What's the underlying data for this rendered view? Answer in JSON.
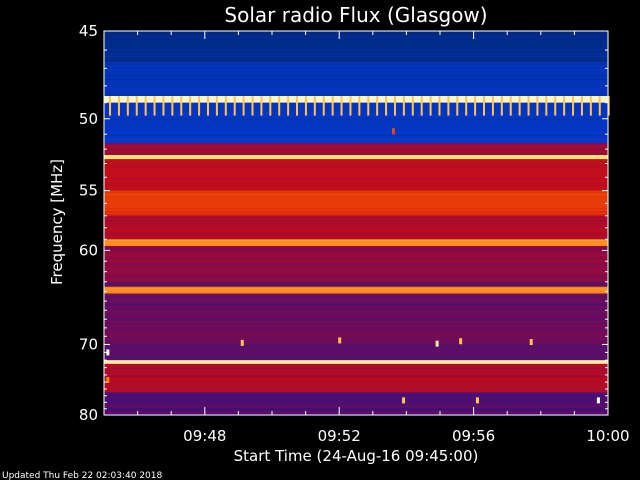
{
  "chart_data": {
    "type": "heatmap",
    "title": "Solar radio Flux (Glasgow)",
    "xlabel": "Start Time (24-Aug-16 09:45:00)",
    "ylabel": "Frequency [MHz]",
    "x_tick_labels": [
      "09:48",
      "09:52",
      "09:56",
      "10:00"
    ],
    "x_ticks_minutes_after_0945": [
      3,
      7,
      11,
      15
    ],
    "xlim_minutes_after_0945": [
      0,
      15
    ],
    "y_tick_labels": [
      "45",
      "50",
      "55",
      "60",
      "70",
      "80"
    ],
    "y_ticks_mhz": [
      45,
      50,
      55,
      60,
      70,
      80
    ],
    "ylim_mhz": [
      45,
      80
    ],
    "y_scale": "reciprocal",
    "colormap": [
      "#1a0a5a",
      "#3a1080",
      "#9a0a3a",
      "#d01010",
      "#ff6a00",
      "#ffe060",
      "#ffffff"
    ],
    "background_level": 0.22,
    "bands": [
      {
        "mhz_from": 45.0,
        "mhz_to": 46.6,
        "level": 0.05,
        "tone": "blue"
      },
      {
        "mhz_from": 46.6,
        "mhz_to": 48.6,
        "level": 0.15,
        "tone": "blue"
      },
      {
        "mhz_from": 48.6,
        "mhz_to": 49.0,
        "level": 0.95
      },
      {
        "mhz_from": 49.0,
        "mhz_to": 51.6,
        "level": 0.18,
        "tone": "blue"
      },
      {
        "mhz_from": 51.6,
        "mhz_to": 52.4,
        "level": 0.35
      },
      {
        "mhz_from": 52.4,
        "mhz_to": 52.7,
        "level": 0.85
      },
      {
        "mhz_from": 52.7,
        "mhz_to": 55.0,
        "level": 0.45
      },
      {
        "mhz_from": 55.0,
        "mhz_to": 57.0,
        "level": 0.58
      },
      {
        "mhz_from": 57.0,
        "mhz_to": 59.0,
        "level": 0.4
      },
      {
        "mhz_from": 59.0,
        "mhz_to": 59.6,
        "level": 0.72
      },
      {
        "mhz_from": 59.6,
        "mhz_to": 63.0,
        "level": 0.32
      },
      {
        "mhz_from": 63.5,
        "mhz_to": 64.2,
        "level": 0.7
      },
      {
        "mhz_from": 64.2,
        "mhz_to": 70.0,
        "level": 0.25
      },
      {
        "mhz_from": 72.0,
        "mhz_to": 72.5,
        "level": 0.9
      },
      {
        "mhz_from": 72.5,
        "mhz_to": 76.5,
        "level": 0.4
      },
      {
        "mhz_from": 76.5,
        "mhz_to": 80.0,
        "level": 0.2
      }
    ],
    "spikes": [
      {
        "minute": 8.6,
        "mhz": 50.8,
        "level": 0.6
      },
      {
        "minute": 4.1,
        "mhz": 69.8,
        "level": 0.8
      },
      {
        "minute": 7.0,
        "mhz": 69.5,
        "level": 0.8
      },
      {
        "minute": 9.9,
        "mhz": 69.9,
        "level": 0.9
      },
      {
        "minute": 10.6,
        "mhz": 69.6,
        "level": 0.8
      },
      {
        "minute": 12.7,
        "mhz": 69.7,
        "level": 0.8
      },
      {
        "minute": 8.9,
        "mhz": 77.7,
        "level": 0.8
      },
      {
        "minute": 11.1,
        "mhz": 77.7,
        "level": 0.8
      },
      {
        "minute": 14.7,
        "mhz": 77.7,
        "level": 1.0
      },
      {
        "minute": 0.1,
        "mhz": 71.0,
        "level": 1.0
      },
      {
        "minute": 0.1,
        "mhz": 74.7,
        "level": 0.7
      }
    ]
  },
  "footer": "Updated Thu Feb 22 02:03:40 2018"
}
